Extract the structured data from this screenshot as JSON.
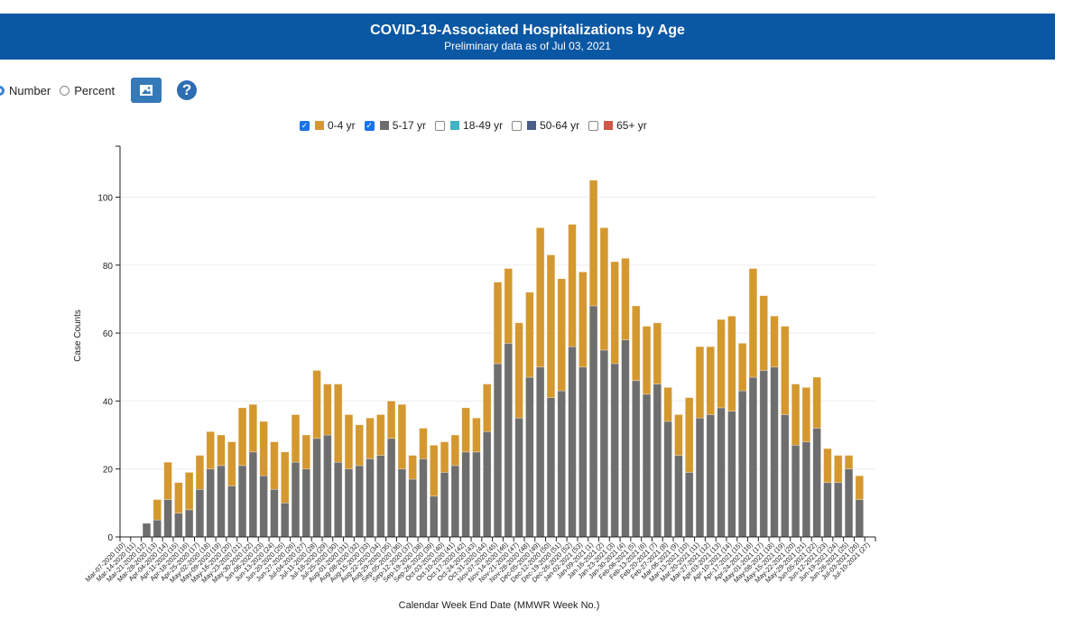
{
  "header": {
    "title": "COVID-19-Associated Hospitalizations by Age",
    "subtitle": "Preliminary data as of Jul 03, 2021"
  },
  "controls": {
    "number_label": "Number",
    "percent_label": "Percent",
    "selected": "Number",
    "image_icon": "image-icon",
    "help_icon": "question-icon",
    "help_glyph": "?"
  },
  "legend": [
    {
      "label": "0-4 yr",
      "color": "#d4982f",
      "checked": true
    },
    {
      "label": "5-17 yr",
      "color": "#6e6e6e",
      "checked": true
    },
    {
      "label": "18-49 yr",
      "color": "#3fb4c6",
      "checked": false
    },
    {
      "label": "50-64 yr",
      "color": "#4a5f86",
      "checked": false
    },
    {
      "label": "65+ yr",
      "color": "#d0564a",
      "checked": false
    }
  ],
  "chart_data": {
    "type": "bar",
    "stacked": true,
    "ylabel": "Case Counts",
    "xlabel": "Calendar Week End Date (MMWR Week No.)",
    "ylim": [
      0,
      115
    ],
    "yticks": [
      0,
      20,
      40,
      60,
      80,
      100
    ],
    "grid": true,
    "categories": [
      "Mar-07-2020 (10)",
      "Mar-14-2020 (11)",
      "Mar-21-2020 (12)",
      "Mar-28-2020 (13)",
      "Apr-04-2020 (14)",
      "Apr-11-2020 (15)",
      "Apr-18-2020 (16)",
      "Apr-25-2020 (17)",
      "May-02-2020 (18)",
      "May-09-2020 (19)",
      "May-16-2020 (20)",
      "May-23-2020 (21)",
      "May-30-2020 (22)",
      "Jun-06-2020 (23)",
      "Jun-13-2020 (24)",
      "Jun-20-2020 (25)",
      "Jun-27-2020 (26)",
      "Jul-04-2020 (27)",
      "Jul-11-2020 (28)",
      "Jul-18-2020 (29)",
      "Jul-25-2020 (30)",
      "Aug-01-2020 (31)",
      "Aug-08-2020 (32)",
      "Aug-15-2020 (33)",
      "Aug-22-2020 (34)",
      "Aug-29-2020 (35)",
      "Sep-05-2020 (36)",
      "Sep-12-2020 (37)",
      "Sep-19-2020 (38)",
      "Sep-26-2020 (39)",
      "Oct-03-2020 (40)",
      "Oct-10-2020 (41)",
      "Oct-17-2020 (42)",
      "Oct-24-2020 (43)",
      "Oct-31-2020 (44)",
      "Nov-07-2020 (45)",
      "Nov-14-2020 (46)",
      "Nov-21-2020 (47)",
      "Nov-28-2020 (48)",
      "Dec-05-2020 (49)",
      "Dec-12-2020 (50)",
      "Dec-19-2020 (51)",
      "Dec-26-2020 (52)",
      "Jan-02-2021 (53)",
      "Jan-09-2021 (1)",
      "Jan-16-2021 (2)",
      "Jan-23-2021 (3)",
      "Jan-30-2021 (4)",
      "Feb-06-2021 (5)",
      "Feb-13-2021 (6)",
      "Feb-20-2021 (7)",
      "Feb-27-2021 (8)",
      "Mar-06-2021 (9)",
      "Mar-13-2021 (10)",
      "Mar-20-2021 (11)",
      "Mar-27-2021 (12)",
      "Apr-03-2021 (13)",
      "Apr-10-2021 (14)",
      "Apr-17-2021 (15)",
      "Apr-24-2021 (16)",
      "May-01-2021 (17)",
      "May-08-2021 (18)",
      "May-15-2021 (19)",
      "May-22-2021 (20)",
      "May-29-2021 (21)",
      "Jun-05-2021 (22)",
      "Jun-12-2021 (23)",
      "Jun-19-2021 (24)",
      "Jun-26-2021 (25)",
      "Jul-03-2021 (26)",
      "Jul-10-2021 (27)"
    ],
    "series": [
      {
        "name": "5-17 yr",
        "color": "#6e6e6e",
        "values": [
          0,
          0,
          4,
          5,
          11,
          7,
          8,
          14,
          20,
          21,
          15,
          21,
          25,
          18,
          14,
          10,
          22,
          20,
          29,
          30,
          22,
          20,
          21,
          23,
          24,
          29,
          20,
          17,
          23,
          12,
          19,
          21,
          25,
          25,
          31,
          51,
          57,
          35,
          47,
          50,
          41,
          43,
          56,
          50,
          68,
          55,
          51,
          58,
          46,
          42,
          45,
          34,
          24,
          19,
          35,
          36,
          38,
          37,
          43,
          47,
          49,
          50,
          36,
          27,
          28,
          32,
          16,
          16,
          20,
          11,
          0
        ]
      },
      {
        "name": "0-4 yr",
        "color": "#d4982f",
        "values": [
          0,
          0,
          0,
          6,
          11,
          9,
          11,
          10,
          11,
          9,
          13,
          17,
          14,
          16,
          14,
          15,
          14,
          10,
          20,
          15,
          23,
          16,
          12,
          12,
          12,
          11,
          19,
          7,
          9,
          15,
          9,
          9,
          13,
          10,
          14,
          24,
          22,
          28,
          25,
          41,
          42,
          33,
          36,
          28,
          37,
          36,
          30,
          24,
          22,
          20,
          18,
          10,
          12,
          22,
          21,
          20,
          26,
          28,
          14,
          32,
          22,
          15,
          26,
          18,
          16,
          15,
          10,
          8,
          4,
          7,
          0
        ]
      }
    ]
  }
}
